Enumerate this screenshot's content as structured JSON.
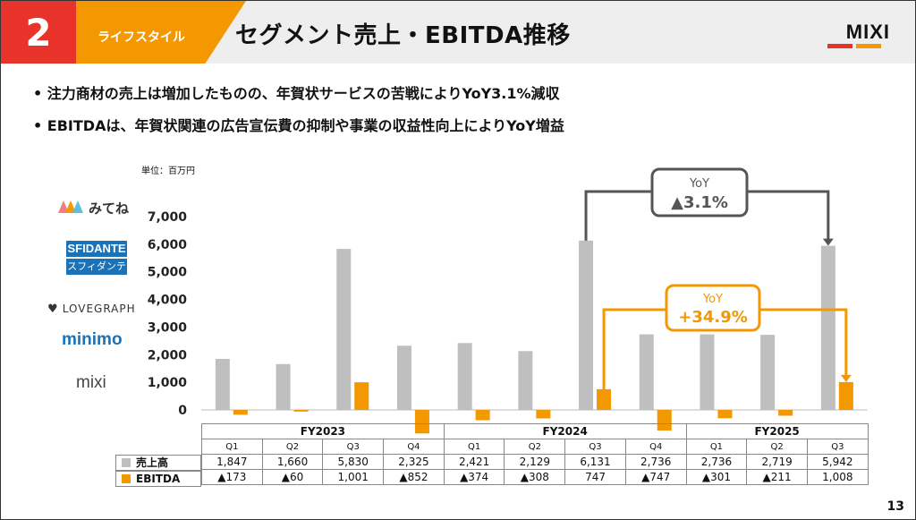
{
  "header": {
    "section_number": "2",
    "category": "ライフスタイル",
    "title": "セグメント売上・EBITDA推移",
    "logo": "MIXI",
    "accent_red": "#e8332a",
    "accent_orange": "#f39800"
  },
  "bullets": [
    "注力商材の売上は増加したものの、年賀状サービスの苦戦によりYoY3.1%減収",
    "EBITDAは、年賀状関連の広告宣伝費の抑制や事業の収益性向上によりYoY増益"
  ],
  "unit_label": "単位：百万円",
  "brands": {
    "mitene": "みてね",
    "sfidante_en": "SFIDANTE",
    "sfidante_ja": "スフィダンテ",
    "lovegraph": "LOVEGRAPH",
    "minimo": "minimo",
    "mixi": "mixi"
  },
  "annotations": {
    "sales_yoy_label": "YoY",
    "sales_yoy_value": "▲3.1%",
    "ebitda_yoy_label": "YoY",
    "ebitda_yoy_value": "+34.9%"
  },
  "page_number": "13",
  "chart_data": {
    "type": "bar",
    "title": "",
    "ylabel": "",
    "ylim": [
      -500,
      7000
    ],
    "yticks": [
      "0",
      "1,000",
      "2,000",
      "3,000",
      "4,000",
      "5,000",
      "6,000",
      "7,000"
    ],
    "fiscal_years": [
      "FY2023",
      "FY2024",
      "FY2025"
    ],
    "categories": [
      "Q1",
      "Q2",
      "Q3",
      "Q4",
      "Q1",
      "Q2",
      "Q3",
      "Q4",
      "Q1",
      "Q2",
      "Q3"
    ],
    "series": [
      {
        "name": "売上高",
        "color": "#bfbfbf",
        "values": [
          1847,
          1660,
          5830,
          2325,
          2421,
          2129,
          6131,
          2736,
          2736,
          2719,
          5942
        ],
        "labels": [
          "1,847",
          "1,660",
          "5,830",
          "2,325",
          "2,421",
          "2,129",
          "6,131",
          "2,736",
          "2,736",
          "2,719",
          "5,942"
        ]
      },
      {
        "name": "EBITDA",
        "color": "#f39800",
        "values": [
          -173,
          -60,
          1001,
          -852,
          -374,
          -308,
          747,
          -747,
          -301,
          -211,
          1008
        ],
        "labels": [
          "▲173",
          "▲60",
          "1,001",
          "▲852",
          "▲374",
          "▲308",
          "747",
          "▲747",
          "▲301",
          "▲211",
          "1,008"
        ]
      }
    ]
  }
}
